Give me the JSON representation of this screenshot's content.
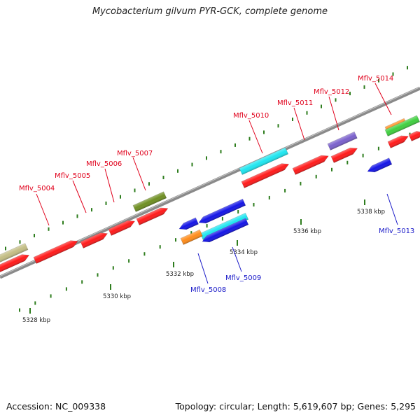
{
  "title": "Mycobacterium gilvum PYR-GCK, complete genome",
  "footer": {
    "accession": "Accession: NC_009338",
    "summary": "Topology: circular; Length: 5,619,607 bp; Genes: 5,295"
  },
  "colors": {
    "backbone": "#8a8a8a",
    "tick": "#2e7d1e",
    "forward_label": "#e0001b",
    "reverse_label": "#1a1ac8",
    "kbp_label": "#222222"
  },
  "scale_labels": [
    "5328 kbp",
    "5330 kbp",
    "5332 kbp",
    "5334 kbp",
    "5336 kbp",
    "5338 kbp"
  ],
  "genes": [
    {
      "name": "Mflv_5004",
      "strand": "+",
      "color": "red"
    },
    {
      "name": "Mflv_5005",
      "strand": "+",
      "color": "red"
    },
    {
      "name": "Mflv_5006",
      "strand": "+",
      "color": "red"
    },
    {
      "name": "Mflv_5007",
      "strand": "+",
      "color": "red"
    },
    {
      "name": "Mflv_5008",
      "strand": "-",
      "color": "blue"
    },
    {
      "name": "Mflv_5009",
      "strand": "-",
      "color": "blue"
    },
    {
      "name": "Mflv_5010",
      "strand": "+",
      "color": "red"
    },
    {
      "name": "Mflv_5011",
      "strand": "+",
      "color": "red"
    },
    {
      "name": "Mflv_5012",
      "strand": "+",
      "color": "red"
    },
    {
      "name": "Mflv_5013",
      "strand": "-",
      "color": "blue"
    },
    {
      "name": "Mflv_5014",
      "strand": "+",
      "color": "red"
    }
  ]
}
